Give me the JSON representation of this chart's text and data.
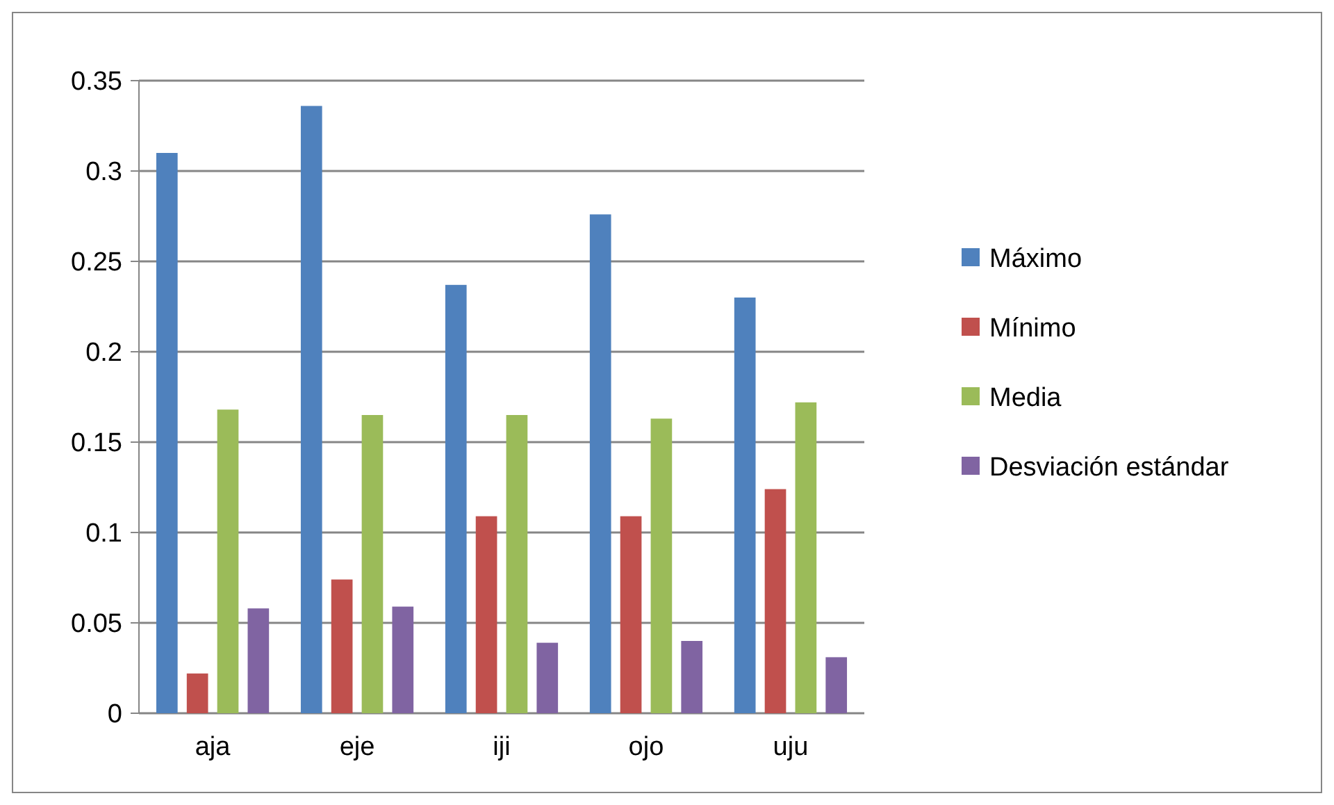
{
  "chart_data": {
    "type": "bar",
    "categories": [
      "aja",
      "eje",
      "iji",
      "ojo",
      "uju"
    ],
    "series": [
      {
        "name": "Máximo",
        "color": "#4f81bd",
        "values": [
          0.31,
          0.336,
          0.237,
          0.276,
          0.23
        ]
      },
      {
        "name": "Mínimo",
        "color": "#c0504d",
        "values": [
          0.022,
          0.074,
          0.109,
          0.109,
          0.124
        ]
      },
      {
        "name": "Media",
        "color": "#9bbb59",
        "values": [
          0.168,
          0.165,
          0.165,
          0.163,
          0.172
        ]
      },
      {
        "name": "Desviación estándar",
        "color": "#8064a2",
        "values": [
          0.058,
          0.059,
          0.039,
          0.04,
          0.031
        ]
      }
    ],
    "ylim": [
      0,
      0.35
    ],
    "yticks": [
      0,
      {
        "value": 0.05,
        "label": "0.05"
      },
      {
        "value": 0.1,
        "label": "0.1"
      },
      {
        "value": 0.15,
        "label": "0.15"
      },
      {
        "value": 0.2,
        "label": "0.2"
      },
      {
        "value": 0.25,
        "label": "0.25"
      },
      {
        "value": 0.3,
        "label": "0.3"
      },
      {
        "value": 0.35,
        "label": "0.35"
      }
    ],
    "grid": "y",
    "legend": "right"
  }
}
